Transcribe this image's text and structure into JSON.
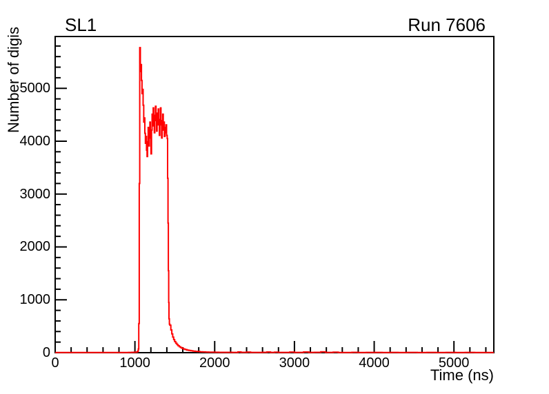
{
  "window": {
    "background": "#ffffff"
  },
  "titles": {
    "left": "SL1",
    "right": "Run 7606"
  },
  "chart_data": {
    "type": "histogram-line",
    "title": "SL1",
    "annotation": "Run 7606",
    "xlabel": "Time (ns)",
    "ylabel": "Number of digis",
    "xlim": [
      0,
      5500
    ],
    "ylim": [
      0,
      5980
    ],
    "x_major_ticks": [
      0,
      1000,
      2000,
      3000,
      4000,
      5000
    ],
    "x_minor_step": 200,
    "y_major_ticks": [
      0,
      1000,
      2000,
      3000,
      4000,
      5000
    ],
    "y_minor_step": 200,
    "grid": false,
    "legend": "none",
    "line_color": "#ff0000",
    "frame_color": "#000000",
    "points": [
      [
        0,
        3
      ],
      [
        120,
        3
      ],
      [
        240,
        4
      ],
      [
        360,
        3
      ],
      [
        480,
        4
      ],
      [
        600,
        3
      ],
      [
        720,
        4
      ],
      [
        840,
        4
      ],
      [
        920,
        5
      ],
      [
        960,
        6
      ],
      [
        990,
        8
      ],
      [
        1010,
        11
      ],
      [
        1025,
        16
      ],
      [
        1036,
        30
      ],
      [
        1042,
        70
      ],
      [
        1048,
        550
      ],
      [
        1054,
        3200
      ],
      [
        1060,
        5770
      ],
      [
        1068,
        5320
      ],
      [
        1075,
        5450
      ],
      [
        1082,
        5150
      ],
      [
        1089,
        4900
      ],
      [
        1096,
        4980
      ],
      [
        1103,
        4680
      ],
      [
        1110,
        4360
      ],
      [
        1117,
        4440
      ],
      [
        1124,
        4150
      ],
      [
        1131,
        3960
      ],
      [
        1138,
        4090
      ],
      [
        1145,
        3830
      ],
      [
        1152,
        3710
      ],
      [
        1159,
        3990
      ],
      [
        1166,
        4260
      ],
      [
        1173,
        3910
      ],
      [
        1180,
        4160
      ],
      [
        1187,
        4360
      ],
      [
        1194,
        4060
      ],
      [
        1201,
        3760
      ],
      [
        1208,
        4210
      ],
      [
        1215,
        4510
      ],
      [
        1222,
        4290
      ],
      [
        1229,
        4630
      ],
      [
        1236,
        4410
      ],
      [
        1243,
        4160
      ],
      [
        1250,
        4490
      ],
      [
        1257,
        4660
      ],
      [
        1264,
        4390
      ],
      [
        1271,
        4190
      ],
      [
        1278,
        4530
      ],
      [
        1285,
        4310
      ],
      [
        1292,
        4610
      ],
      [
        1299,
        4360
      ],
      [
        1306,
        4110
      ],
      [
        1313,
        4410
      ],
      [
        1320,
        4630
      ],
      [
        1327,
        4310
      ],
      [
        1334,
        4060
      ],
      [
        1341,
        4390
      ],
      [
        1348,
        4510
      ],
      [
        1355,
        4210
      ],
      [
        1362,
        4360
      ],
      [
        1369,
        4090
      ],
      [
        1376,
        4260
      ],
      [
        1383,
        4160
      ],
      [
        1390,
        4310
      ],
      [
        1397,
        4110
      ],
      [
        1404,
        4050
      ],
      [
        1410,
        3300
      ],
      [
        1415,
        2450
      ],
      [
        1419,
        1550
      ],
      [
        1423,
        950
      ],
      [
        1427,
        640
      ],
      [
        1432,
        540
      ],
      [
        1438,
        520
      ],
      [
        1450,
        430
      ],
      [
        1462,
        355
      ],
      [
        1474,
        295
      ],
      [
        1486,
        248
      ],
      [
        1498,
        210
      ],
      [
        1512,
        178
      ],
      [
        1526,
        152
      ],
      [
        1540,
        131
      ],
      [
        1556,
        112
      ],
      [
        1572,
        97
      ],
      [
        1590,
        82
      ],
      [
        1610,
        69
      ],
      [
        1630,
        59
      ],
      [
        1652,
        50
      ],
      [
        1675,
        43
      ],
      [
        1700,
        36
      ],
      [
        1726,
        30
      ],
      [
        1754,
        25
      ],
      [
        1784,
        21
      ],
      [
        1816,
        17
      ],
      [
        1850,
        14
      ],
      [
        1886,
        12
      ],
      [
        1924,
        10
      ],
      [
        1964,
        9
      ],
      [
        2006,
        8
      ],
      [
        2050,
        7
      ],
      [
        2100,
        6
      ],
      [
        2160,
        6
      ],
      [
        2220,
        5
      ],
      [
        2292,
        14
      ],
      [
        2330,
        6
      ],
      [
        2404,
        12
      ],
      [
        2450,
        5
      ],
      [
        2530,
        5
      ],
      [
        2600,
        6
      ],
      [
        2655,
        13
      ],
      [
        2700,
        5
      ],
      [
        2751,
        11
      ],
      [
        2800,
        5
      ],
      [
        2870,
        5
      ],
      [
        2941,
        12
      ],
      [
        3000,
        5
      ],
      [
        3060,
        5
      ],
      [
        3114,
        13
      ],
      [
        3180,
        5
      ],
      [
        3250,
        6
      ],
      [
        3330,
        15
      ],
      [
        3390,
        5
      ],
      [
        3486,
        10
      ],
      [
        3550,
        4
      ],
      [
        3640,
        4
      ],
      [
        3720,
        7
      ],
      [
        3800,
        4
      ],
      [
        3900,
        5
      ],
      [
        4000,
        5
      ],
      [
        4100,
        4
      ],
      [
        4200,
        5
      ],
      [
        4300,
        4
      ],
      [
        4420,
        5
      ],
      [
        4540,
        4
      ],
      [
        4660,
        5
      ],
      [
        4780,
        4
      ],
      [
        4900,
        5
      ],
      [
        5020,
        4
      ],
      [
        5140,
        5
      ],
      [
        5260,
        4
      ],
      [
        5380,
        4
      ],
      [
        5500,
        4
      ]
    ]
  }
}
